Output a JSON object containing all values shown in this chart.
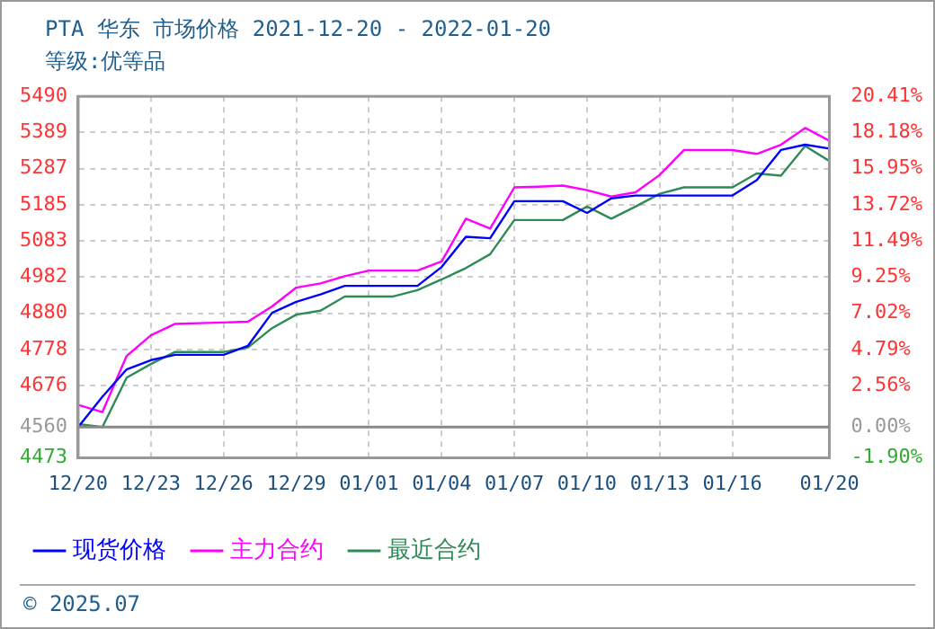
{
  "chart_data": {
    "type": "line",
    "title": "PTA 华东 市场价格 2021-12-20 - 2022-01-20",
    "subtitle": "等级:优等品",
    "x": [
      "2021-12-20",
      "2021-12-21",
      "2021-12-22",
      "2021-12-23",
      "2021-12-24",
      "2021-12-25",
      "2021-12-26",
      "2021-12-27",
      "2021-12-28",
      "2021-12-29",
      "2021-12-30",
      "2021-12-31",
      "2022-01-01",
      "2022-01-02",
      "2022-01-03",
      "2022-01-04",
      "2022-01-05",
      "2022-01-06",
      "2022-01-07",
      "2022-01-08",
      "2022-01-09",
      "2022-01-10",
      "2022-01-11",
      "2022-01-12",
      "2022-01-13",
      "2022-01-14",
      "2022-01-15",
      "2022-01-16",
      "2022-01-17",
      "2022-01-18",
      "2022-01-19",
      "2022-01-20"
    ],
    "series": [
      {
        "name": "现货价格",
        "color": "#0000ff",
        "values": [
          4560,
          4645,
          4722,
          4748,
          4763,
          4763,
          4763,
          4788,
          4881,
          4912,
          4933,
          4957,
          4957,
          4957,
          4957,
          5010,
          5095,
          5091,
          5195,
          5195,
          5195,
          5162,
          5203,
          5211,
          5211,
          5211,
          5211,
          5211,
          5254,
          5339,
          5354,
          5343
        ]
      },
      {
        "name": "主力合约",
        "color": "#ff00ff",
        "values": [
          4622,
          4602,
          4760,
          4818,
          4850,
          4852,
          4854,
          4856,
          4899,
          4952,
          4964,
          4984,
          5000,
          5000,
          5000,
          5026,
          5146,
          5118,
          5234,
          5236,
          5239,
          5226,
          5208,
          5220,
          5269,
          5339,
          5339,
          5339,
          5328,
          5354,
          5401,
          5365
        ]
      },
      {
        "name": "最近合约",
        "color": "#2e8b57",
        "values": [
          4568,
          4560,
          4699,
          4737,
          4771,
          4771,
          4771,
          4783,
          4838,
          4876,
          4887,
          4927,
          4927,
          4927,
          4945,
          4975,
          5007,
          5046,
          5142,
          5142,
          5142,
          5180,
          5146,
          5180,
          5216,
          5234,
          5234,
          5234,
          5273,
          5267,
          5350,
          5308
        ]
      }
    ],
    "xlim": [
      "2021-12-20",
      "2022-01-20"
    ],
    "xticks": [
      {
        "value": "2021-12-20",
        "label": "12/20"
      },
      {
        "value": "2021-12-23",
        "label": "12/23"
      },
      {
        "value": "2021-12-26",
        "label": "12/26"
      },
      {
        "value": "2021-12-29",
        "label": "12/29"
      },
      {
        "value": "2022-01-01",
        "label": "01/01"
      },
      {
        "value": "2022-01-04",
        "label": "01/04"
      },
      {
        "value": "2022-01-07",
        "label": "01/07"
      },
      {
        "value": "2022-01-10",
        "label": "01/10"
      },
      {
        "value": "2022-01-13",
        "label": "01/13"
      },
      {
        "value": "2022-01-16",
        "label": "01/16"
      },
      {
        "value": "2022-01-20",
        "label": "01/20"
      }
    ],
    "ylim": [
      4473,
      5490
    ],
    "yticks": [
      4473,
      4560,
      4676,
      4778,
      4880,
      4982,
      5083,
      5185,
      5287,
      5389,
      5490
    ],
    "y2lim": [
      -1.9,
      20.41
    ],
    "y2ticks": [
      {
        "value": -1.9,
        "label": "-1.90%"
      },
      {
        "value": 0,
        "label": "0.00%"
      },
      {
        "value": 2.56,
        "label": "2.56%"
      },
      {
        "value": 4.79,
        "label": "4.79%"
      },
      {
        "value": 7.02,
        "label": "7.02%"
      },
      {
        "value": 9.25,
        "label": "9.25%"
      },
      {
        "value": 11.49,
        "label": "11.49%"
      },
      {
        "value": 13.72,
        "label": "13.72%"
      },
      {
        "value": 15.95,
        "label": "15.95%"
      },
      {
        "value": 18.18,
        "label": "18.18%"
      },
      {
        "value": 20.41,
        "label": "20.41%"
      }
    ],
    "ref_lines": [
      {
        "axis": "y",
        "value": 4560,
        "color": "#888888"
      }
    ],
    "grid": true,
    "legend": "bottom",
    "marker": "none",
    "line_style": "solid",
    "annotations": [
      "© 2025.07"
    ]
  }
}
